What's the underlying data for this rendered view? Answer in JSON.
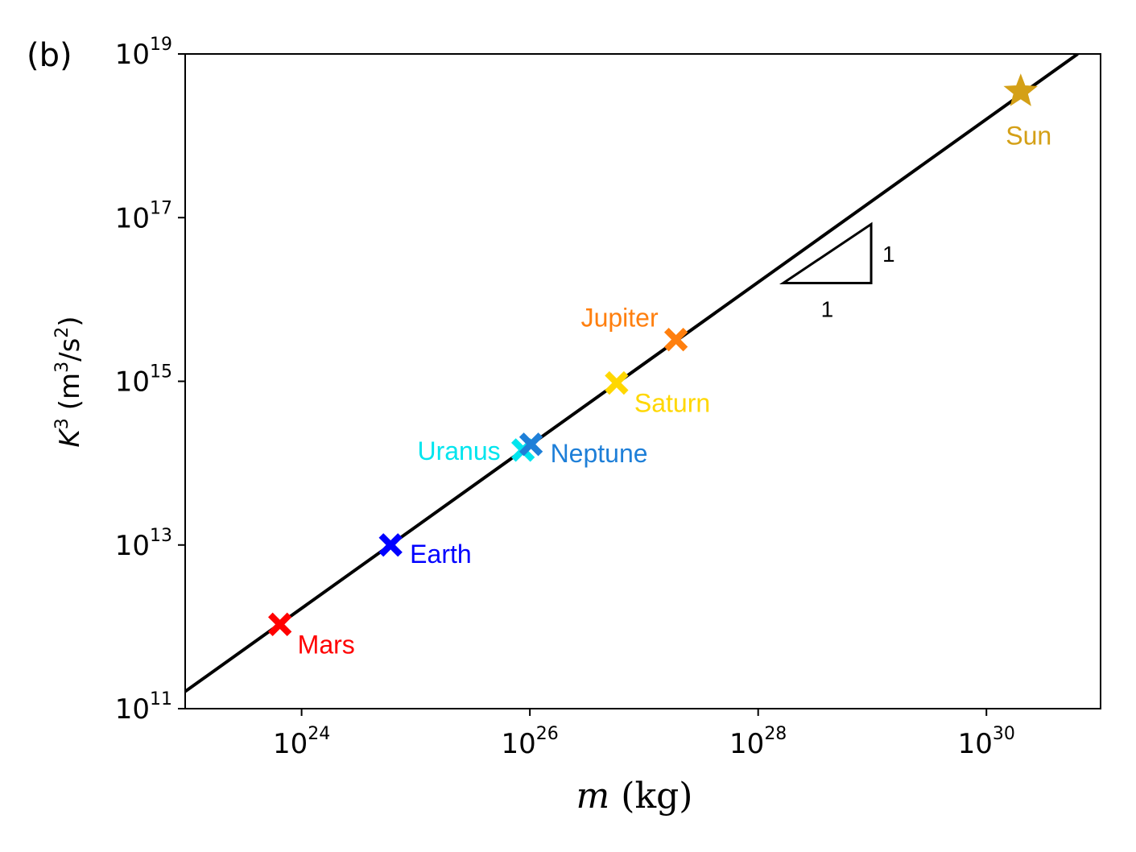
{
  "panel_label": "(b)",
  "chart_data": {
    "type": "scatter",
    "title": "",
    "xscale": "log",
    "yscale": "log",
    "xlim_exp": [
      22.98,
      31.0
    ],
    "ylim_exp": [
      11,
      19
    ],
    "xlabel": {
      "var": "m",
      "unit": "(kg)"
    },
    "ylabel": {
      "var": "K",
      "power": "3",
      "unit_pre": "(m",
      "unit_pow1": "3",
      "unit_mid": "/s",
      "unit_pow2": "2",
      "unit_post": ")"
    },
    "x_ticks": [
      {
        "base": "10",
        "exp": "24",
        "value_exp": 24
      },
      {
        "base": "10",
        "exp": "26",
        "value_exp": 26
      },
      {
        "base": "10",
        "exp": "28",
        "value_exp": 28
      },
      {
        "base": "10",
        "exp": "30",
        "value_exp": 30
      }
    ],
    "y_ticks": [
      {
        "base": "10",
        "exp": "11",
        "value_exp": 11
      },
      {
        "base": "10",
        "exp": "13",
        "value_exp": 13
      },
      {
        "base": "10",
        "exp": "15",
        "value_exp": 15
      },
      {
        "base": "10",
        "exp": "17",
        "value_exp": 17
      },
      {
        "base": "10",
        "exp": "19",
        "value_exp": 19
      }
    ],
    "fit_line": {
      "x_exp": [
        22.98,
        30.8
      ],
      "y_exp": [
        11.21,
        19.0
      ],
      "slope": 1
    },
    "slope_triangle": {
      "x_exp": [
        28.22,
        28.99
      ],
      "y_exp": [
        16.2,
        16.92
      ],
      "run_label": "1",
      "rise_label": "1"
    },
    "points": [
      {
        "name": "Mars",
        "x_exp": 23.81,
        "y_exp": 12.03,
        "color": "#ff0000",
        "marker": "x",
        "label_anchor": "below-right"
      },
      {
        "name": "Earth",
        "x_exp": 24.78,
        "y_exp": 13.0,
        "color": "#0000ff",
        "marker": "x",
        "label_anchor": "right"
      },
      {
        "name": "Uranus",
        "x_exp": 25.94,
        "y_exp": 14.16,
        "color": "#00e5ee",
        "marker": "x",
        "label_anchor": "left"
      },
      {
        "name": "Neptune",
        "x_exp": 26.01,
        "y_exp": 14.23,
        "color": "#1e7fd8",
        "marker": "x",
        "label_anchor": "right"
      },
      {
        "name": "Saturn",
        "x_exp": 26.76,
        "y_exp": 14.98,
        "color": "#ffd700",
        "marker": "x",
        "label_anchor": "below-right"
      },
      {
        "name": "Jupiter",
        "x_exp": 27.28,
        "y_exp": 15.51,
        "color": "#ff7f0e",
        "marker": "x",
        "label_anchor": "above-left"
      },
      {
        "name": "Sun",
        "x_exp": 30.3,
        "y_exp": 18.54,
        "color": "#d4a017",
        "marker": "star",
        "label_anchor": "below"
      }
    ]
  }
}
